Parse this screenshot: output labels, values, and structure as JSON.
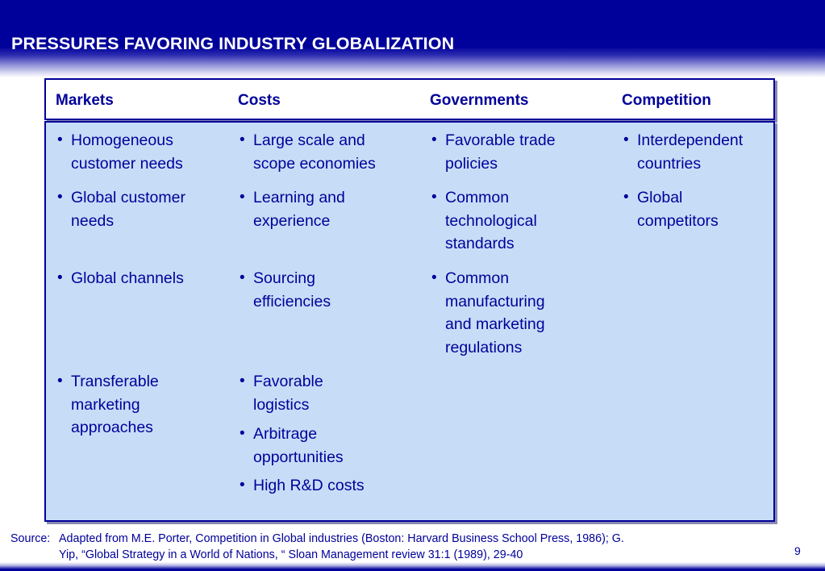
{
  "slide": {
    "title": "PRESSURES FAVORING INDUSTRY GLOBALIZATION",
    "page_number": "9"
  },
  "columns": [
    {
      "header": "Markets",
      "items": [
        {
          "line1": "Homogeneous",
          "line2": "customer needs"
        },
        {
          "line1": "Global customer",
          "line2": "needs"
        },
        {
          "line1": "Global channels"
        },
        {
          "line1": "Transferable",
          "line2": "marketing",
          "line3": "approaches"
        }
      ]
    },
    {
      "header": "Costs",
      "items": [
        {
          "line1": "Large scale and",
          "line2": "scope economies"
        },
        {
          "line1": "Learning and",
          "line2": "experience"
        },
        {
          "line1": "Sourcing",
          "line2": "efficiencies"
        },
        {
          "line1": "Favorable",
          "line2": "logistics"
        },
        {
          "line1": "Arbitrage",
          "line2": "opportunities"
        },
        {
          "line1": "High R&D costs"
        }
      ]
    },
    {
      "header": "Governments",
      "items": [
        {
          "line1": "Favorable trade",
          "line2": "policies"
        },
        {
          "line1": "Common",
          "line2": "technological",
          "line3": "standards"
        },
        {
          "line1": "Common",
          "line2": "manufacturing",
          "line3": "and marketing",
          "line4": "regulations"
        }
      ]
    },
    {
      "header": "Competition",
      "items": [
        {
          "line1": "Interdependent",
          "line2": "countries"
        },
        {
          "line1": "Global",
          "line2": "competitors"
        }
      ]
    }
  ],
  "bullet_glyph": "•",
  "source": {
    "label": "Source:",
    "line1": "Adapted from M.E.  Porter, Competition in Global industries (Boston: Harvard Business School Press, 1986); G.",
    "line2": "Yip, “Global Strategy in a World of Nations, “ Sloan Management review 31:1 (1989), 29-40"
  },
  "colors": {
    "title_bar": "#00009a",
    "text": "#00009a",
    "body_fill": "#c7ddf7"
  }
}
